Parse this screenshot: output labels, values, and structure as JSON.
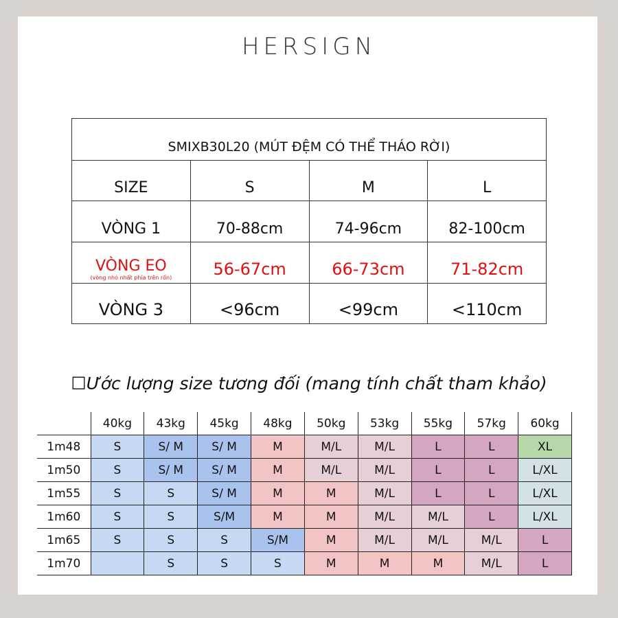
{
  "brand": "HERSIGN",
  "size_table": {
    "title": "SMIXB30L20 (MÚT ĐỆM CÓ THỂ THÁO RỜI)",
    "header": [
      "SIZE",
      "S",
      "M",
      "L"
    ],
    "rows": [
      {
        "label": "VÒNG 1",
        "note": "",
        "values": [
          "70-88cm",
          "74-96cm",
          "82-100cm"
        ]
      },
      {
        "label": "VÒNG EO",
        "note": "(vòng nhỏ nhất phía trên rốn)",
        "values": [
          "56-67cm",
          "66-73cm",
          "71-82cm"
        ]
      },
      {
        "label": "VÒNG 3",
        "note": "",
        "values": [
          "<96cm",
          "<99cm",
          "<110cm"
        ]
      }
    ],
    "highlight_color": "#e01010"
  },
  "estimate": {
    "title_box": "☐",
    "title": "Ước lượng size tương đối (mang tính chất tham khảo)",
    "weights": [
      "40kg",
      "43kg",
      "45kg",
      "48kg",
      "50kg",
      "53kg",
      "55kg",
      "57kg",
      "60kg"
    ],
    "rows": [
      {
        "height": "1m48",
        "cells": [
          "S",
          "S/ M",
          "S/ M",
          "M",
          "M/L",
          "M/L",
          "L",
          "L",
          "XL"
        ]
      },
      {
        "height": "1m50",
        "cells": [
          "S",
          "S/ M",
          "S/ M",
          "M",
          "M/L",
          "M/L",
          "L",
          "L",
          "L/XL"
        ]
      },
      {
        "height": "1m55",
        "cells": [
          "S",
          "S",
          "S/ M",
          "M",
          "M",
          "M/L",
          "L",
          "L",
          "L/XL"
        ]
      },
      {
        "height": "1m60",
        "cells": [
          "S",
          "S",
          "S/M",
          "M",
          "M",
          "M/L",
          "M/L",
          "L",
          "L/XL"
        ]
      },
      {
        "height": "1m65",
        "cells": [
          "S",
          "S",
          "S",
          "S/M",
          "M",
          "M/L",
          "M/L",
          "M/L",
          "L"
        ]
      },
      {
        "height": "1m70",
        "cells": [
          "",
          "S",
          "S",
          "S",
          "M",
          "M",
          "M",
          "M/L",
          "L"
        ]
      }
    ]
  }
}
